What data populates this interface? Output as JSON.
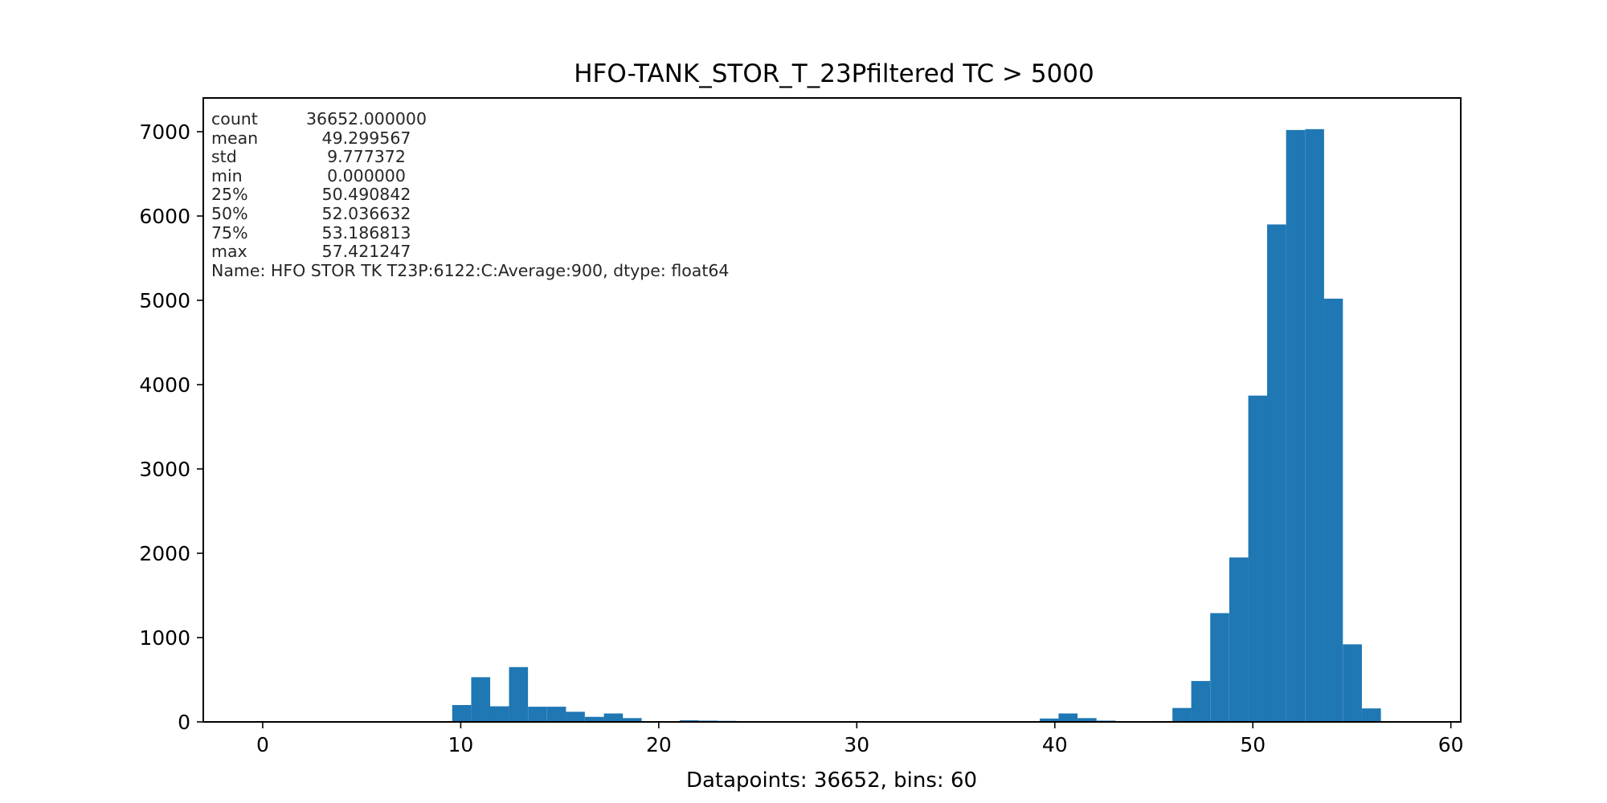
{
  "chart_data": {
    "type": "bar",
    "title": "HFO-TANK_STOR_T_23Pfiltered TC > 5000",
    "xlabel": "Datapoints: 36652, bins: 60",
    "ylabel": "",
    "xlim": [
      -3,
      60.5
    ],
    "ylim": [
      0,
      7400
    ],
    "x_ticks": [
      0,
      10,
      20,
      30,
      40,
      50,
      60
    ],
    "y_ticks": [
      0,
      1000,
      2000,
      3000,
      4000,
      5000,
      6000,
      7000
    ],
    "bar_color": "#1f77b4",
    "bin_width": 0.957,
    "bins": [
      {
        "x": 9.57,
        "value": 200
      },
      {
        "x": 10.53,
        "value": 530
      },
      {
        "x": 11.48,
        "value": 185
      },
      {
        "x": 12.44,
        "value": 650
      },
      {
        "x": 13.4,
        "value": 180
      },
      {
        "x": 14.36,
        "value": 180
      },
      {
        "x": 15.31,
        "value": 120
      },
      {
        "x": 16.27,
        "value": 60
      },
      {
        "x": 17.23,
        "value": 100
      },
      {
        "x": 18.18,
        "value": 45
      },
      {
        "x": 19.14,
        "value": 5
      },
      {
        "x": 20.1,
        "value": 5
      },
      {
        "x": 21.06,
        "value": 20
      },
      {
        "x": 22.01,
        "value": 15
      },
      {
        "x": 22.97,
        "value": 12
      },
      {
        "x": 23.93,
        "value": 10
      },
      {
        "x": 39.24,
        "value": 40
      },
      {
        "x": 40.19,
        "value": 100
      },
      {
        "x": 41.15,
        "value": 45
      },
      {
        "x": 42.11,
        "value": 15
      },
      {
        "x": 44.98,
        "value": 10
      },
      {
        "x": 45.94,
        "value": 165
      },
      {
        "x": 46.89,
        "value": 485
      },
      {
        "x": 47.85,
        "value": 1290
      },
      {
        "x": 48.81,
        "value": 1950
      },
      {
        "x": 49.77,
        "value": 3870
      },
      {
        "x": 50.72,
        "value": 5900
      },
      {
        "x": 51.68,
        "value": 7020
      },
      {
        "x": 52.64,
        "value": 7030
      },
      {
        "x": 53.59,
        "value": 5020
      },
      {
        "x": 54.55,
        "value": 920
      },
      {
        "x": 55.51,
        "value": 160
      },
      {
        "x": 56.46,
        "value": 10
      }
    ],
    "annotation": {
      "rows": [
        {
          "key": "count",
          "value": "36652.000000"
        },
        {
          "key": "mean",
          "value": "   49.299567"
        },
        {
          "key": "std",
          "value": "    9.777372"
        },
        {
          "key": "min",
          "value": "    0.000000"
        },
        {
          "key": "25%",
          "value": "   50.490842"
        },
        {
          "key": "50%",
          "value": "   52.036632"
        },
        {
          "key": "75%",
          "value": "   53.186813"
        },
        {
          "key": "max",
          "value": "   57.421247"
        }
      ],
      "footer": "Name: HFO STOR TK T23P:6122:C:Average:900, dtype: float64"
    }
  }
}
